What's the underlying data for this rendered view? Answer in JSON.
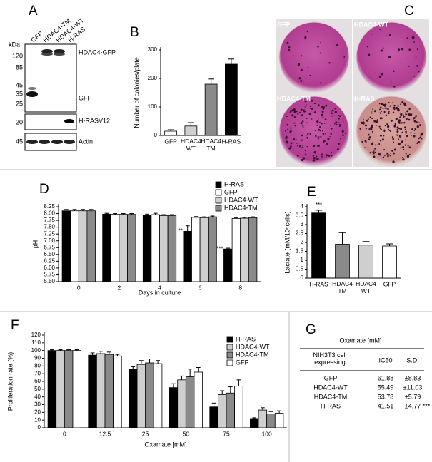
{
  "panel_labels": [
    "A",
    "B",
    "C",
    "D",
    "E",
    "F",
    "G"
  ],
  "blot": {
    "lanes": [
      "GFP",
      "HDAC4-TM",
      "HDAC4-WT",
      "H-RAS"
    ],
    "unit": "kDa",
    "markers": [
      "120",
      "85",
      "45",
      "35",
      "25",
      "20",
      "45"
    ],
    "bands": [
      "HDAC4-GFP",
      "GFP",
      "H-RASV12",
      "Actin"
    ]
  },
  "chart_data": [
    {
      "type": "bar",
      "ylabel": "Number of colonies/plate",
      "categories": [
        "GFP",
        "HDAC4\nWT",
        "HDAC4\nTM",
        "H-RAS"
      ],
      "values": [
        15,
        33,
        180,
        250
      ],
      "errors": [
        5,
        12,
        18,
        18
      ],
      "colors": [
        "#ffffff",
        "#cfcfcf",
        "#8a8a8a",
        "#000000"
      ],
      "ylim": [
        0,
        300
      ],
      "yticks": [
        0,
        100,
        200,
        300
      ],
      "grid": false
    },
    {
      "type": "bar",
      "ylabel": "pH",
      "xlabel": "Days in culture",
      "categories": [
        "0",
        "2",
        "4",
        "6",
        "8"
      ],
      "series": [
        {
          "name": "H-RAS",
          "color": "#000000",
          "values": [
            8.1,
            7.98,
            7.93,
            7.35,
            6.7
          ],
          "errors": [
            0.05,
            0.03,
            0.05,
            0.2,
            0.03
          ]
        },
        {
          "name": "GFP",
          "color": "#ffffff",
          "values": [
            8.1,
            7.97,
            7.96,
            7.86,
            7.82
          ],
          "errors": [
            0.05,
            0.03,
            0.05,
            0.03,
            0.03
          ]
        },
        {
          "name": "HDAC4-WT",
          "color": "#cfcfcf",
          "values": [
            8.1,
            7.97,
            7.92,
            7.85,
            7.83
          ],
          "errors": [
            0.05,
            0.03,
            0.04,
            0.03,
            0.03
          ]
        },
        {
          "name": "HDAC4-TM",
          "color": "#8a8a8a",
          "values": [
            8.1,
            7.97,
            7.92,
            7.88,
            7.85
          ],
          "errors": [
            0.05,
            0.03,
            0.04,
            0.03,
            0.03
          ]
        }
      ],
      "annotations": [
        {
          "text": "**",
          "category": "6"
        },
        {
          "text": "***",
          "category": "8"
        }
      ],
      "ylim": [
        5.5,
        8.25
      ],
      "yticks": [
        {
          "value": 5.5,
          "label": "5.50"
        },
        {
          "value": 5.75,
          "label": "5.75"
        },
        {
          "value": 6,
          "label": "6.00"
        },
        {
          "value": 6.25,
          "label": "6.25"
        },
        {
          "value": 6.5,
          "label": "6.50"
        },
        {
          "value": 6.75,
          "label": "6.75"
        },
        {
          "value": 7,
          "label": "7.00"
        },
        {
          "value": 7.25,
          "label": "7.25"
        },
        {
          "value": 7.5,
          "label": "7.50"
        },
        {
          "value": 7.75,
          "label": "7.75"
        },
        {
          "value": 8,
          "label": "8.00"
        },
        {
          "value": 8.25,
          "label": "8.25"
        }
      ],
      "legend": "upper right",
      "grid": false
    },
    {
      "type": "bar",
      "ylabel": "Lactate (mM/10⁶cells)",
      "categories": [
        "H-RAS",
        "HDAC4\nTM",
        "HDAC4\nWT",
        "GFP"
      ],
      "values": [
        3.65,
        1.9,
        1.85,
        1.8
      ],
      "errors": [
        0.15,
        0.65,
        0.2,
        0.12
      ],
      "colors": [
        "#000000",
        "#8a8a8a",
        "#cfcfcf",
        "#ffffff"
      ],
      "annotations": [
        {
          "text": "***",
          "category": "H-RAS"
        }
      ],
      "ylim": [
        0,
        4
      ],
      "yticks": [
        0,
        0.5,
        1,
        1.5,
        2,
        2.5,
        3,
        3.5,
        4
      ],
      "grid": false
    },
    {
      "type": "bar",
      "ylabel": "Proliferation rate (%)",
      "xlabel": "Oxamate [mM]",
      "categories": [
        "0",
        "12.5",
        "25",
        "50",
        "75",
        "100"
      ],
      "series": [
        {
          "name": "H-RAS",
          "color": "#000000",
          "values": [
            100,
            94,
            76,
            52,
            27,
            12
          ],
          "errors": [
            1,
            3,
            3,
            5,
            5,
            1
          ]
        },
        {
          "name": "HDAC4-WT",
          "color": "#cfcfcf",
          "values": [
            100,
            96,
            82,
            62,
            43,
            23
          ],
          "errors": [
            1,
            3,
            5,
            5,
            5,
            3
          ]
        },
        {
          "name": "HDAC4-TM",
          "color": "#8a8a8a",
          "values": [
            100,
            95,
            84,
            66,
            45,
            18
          ],
          "errors": [
            1,
            3,
            5,
            10,
            8,
            3
          ]
        },
        {
          "name": "GFP",
          "color": "#ffffff",
          "values": [
            100,
            93,
            83,
            72,
            54,
            19
          ],
          "errors": [
            1,
            2,
            4,
            6,
            8,
            3
          ]
        }
      ],
      "ylim": [
        0,
        120
      ],
      "yticks": [
        0,
        10,
        20,
        30,
        40,
        50,
        60,
        70,
        80,
        90,
        100,
        110,
        120
      ],
      "legend": "upper right",
      "grid": false
    }
  ],
  "plates": [
    "GFP",
    "HDAC4-WT",
    "HDAC4-TM",
    "H-RAS"
  ],
  "table": {
    "title": "Oxamate [mM]",
    "header": [
      "NIH3T3 cell\nexpressing",
      "IC50",
      "S.D."
    ],
    "rows": [
      [
        "GFP",
        "61.88",
        "±8.83"
      ],
      [
        "HDAC4-WT",
        "55.49",
        "±11.03"
      ],
      [
        "HDAC4-TM",
        "53.78",
        "±5.79"
      ],
      [
        "H-RAS",
        "41.51",
        "±4.77",
        "***"
      ]
    ]
  }
}
